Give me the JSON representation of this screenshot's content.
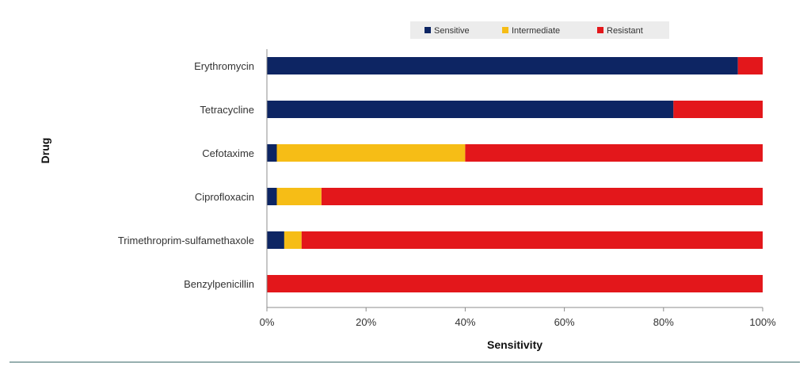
{
  "chart_data": {
    "type": "bar",
    "orientation": "horizontal",
    "stacked": true,
    "percent": true,
    "xlabel": "Sensitivity",
    "ylabel": "Drug",
    "xlim": [
      0,
      100
    ],
    "x_ticks": [
      "0%",
      "20%",
      "40%",
      "60%",
      "80%",
      "100%"
    ],
    "categories": [
      "Erythromycin",
      "Tetracycline",
      "Cefotaxime",
      "Ciprofloxacin",
      "Trimethroprim-sulfamethaxole",
      "Benzylpenicillin"
    ],
    "series": [
      {
        "name": "Sensitive",
        "color": "#0d2563",
        "values": [
          95,
          82,
          2,
          2,
          3.5,
          0
        ]
      },
      {
        "name": "Intermediate",
        "color": "#f6bd16",
        "values": [
          0,
          0,
          38,
          9,
          3.5,
          0
        ]
      },
      {
        "name": "Resistant",
        "color": "#e3171b",
        "values": [
          5,
          18,
          60,
          89,
          93,
          100
        ]
      }
    ],
    "legend": {
      "position": "top"
    },
    "grid": false
  }
}
